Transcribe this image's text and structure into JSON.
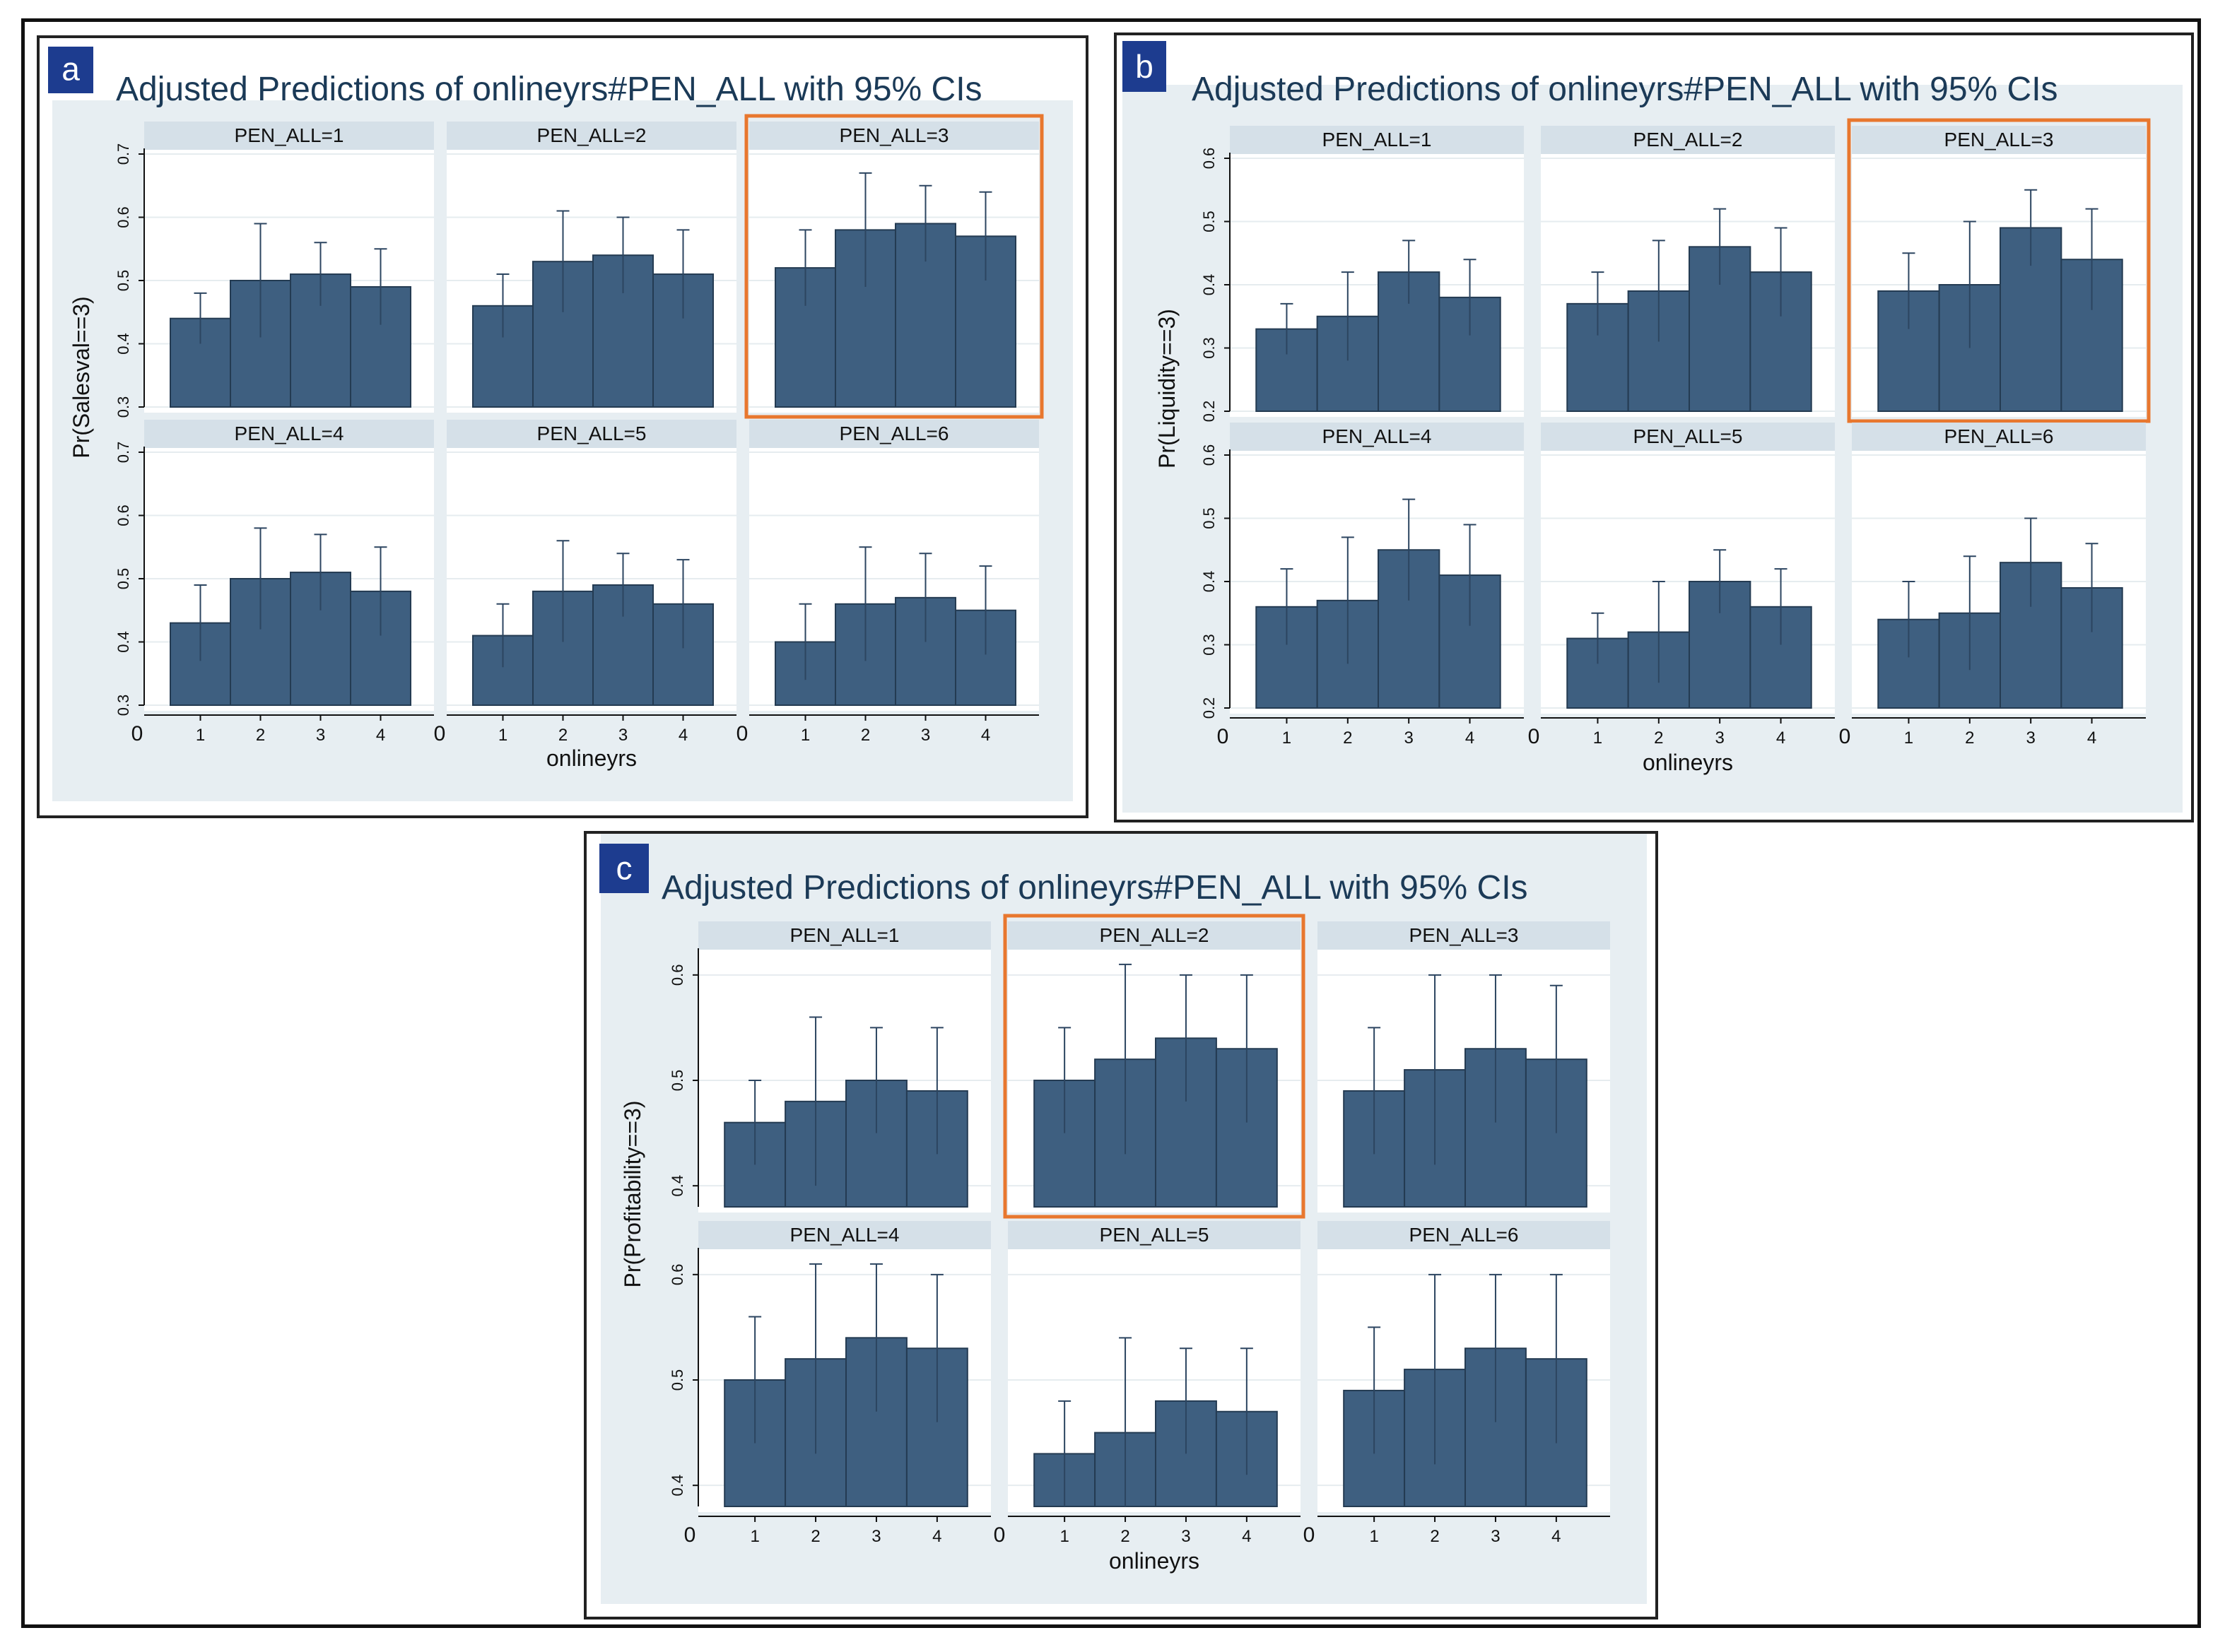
{
  "figures": [
    {
      "letter": "a",
      "title": "Adjusted Predictions of onlineyrs#PEN_ALL with 95% CIs",
      "ylabel": "Pr(Salesval==3)",
      "xlabel": "onlineyrs"
    },
    {
      "letter": "b",
      "title": "Adjusted Predictions of onlineyrs#PEN_ALL with 95% CIs",
      "ylabel": "Pr(Liquidity==3)",
      "xlabel": "onlineyrs"
    },
    {
      "letter": "c",
      "title": "Adjusted Predictions of onlineyrs#PEN_ALL with 95% CIs",
      "ylabel": "Pr(Profitability==3)",
      "xlabel": "onlineyrs"
    }
  ],
  "colors": {
    "bar": "#3e5f80",
    "panel_bg": "#e7eef2",
    "strip_bg": "#d5e0e8",
    "highlight": "#e8772e",
    "letter_box": "#1d3c8f"
  },
  "chart_data": [
    {
      "type": "bar",
      "title": "Adjusted Predictions of onlineyrs#PEN_ALL with 95% CIs",
      "ylabel": "Pr(Salesval==3)",
      "xlabel": "onlineyrs",
      "ylim": [
        0.3,
        0.7
      ],
      "yticks": [
        "0.3",
        "0.4",
        "0.5",
        "0.6",
        "0.7"
      ],
      "xticks": [
        "0",
        "1",
        "2",
        "3",
        "4"
      ],
      "highlighted_panel": 3,
      "panels": [
        {
          "label": "PEN_ALL=1",
          "x": [
            1,
            2,
            3,
            4
          ],
          "values": [
            0.44,
            0.5,
            0.51,
            0.49
          ],
          "ci_upper": [
            0.48,
            0.59,
            0.56,
            0.55
          ]
        },
        {
          "label": "PEN_ALL=2",
          "x": [
            1,
            2,
            3,
            4
          ],
          "values": [
            0.46,
            0.53,
            0.54,
            0.51
          ],
          "ci_upper": [
            0.51,
            0.61,
            0.6,
            0.58
          ]
        },
        {
          "label": "PEN_ALL=3",
          "x": [
            1,
            2,
            3,
            4
          ],
          "values": [
            0.52,
            0.58,
            0.59,
            0.57
          ],
          "ci_upper": [
            0.58,
            0.67,
            0.65,
            0.64
          ]
        },
        {
          "label": "PEN_ALL=4",
          "x": [
            1,
            2,
            3,
            4
          ],
          "values": [
            0.43,
            0.5,
            0.51,
            0.48
          ],
          "ci_upper": [
            0.49,
            0.58,
            0.57,
            0.55
          ]
        },
        {
          "label": "PEN_ALL=5",
          "x": [
            1,
            2,
            3,
            4
          ],
          "values": [
            0.41,
            0.48,
            0.49,
            0.46
          ],
          "ci_upper": [
            0.46,
            0.56,
            0.54,
            0.53
          ]
        },
        {
          "label": "PEN_ALL=6",
          "x": [
            1,
            2,
            3,
            4
          ],
          "values": [
            0.4,
            0.46,
            0.47,
            0.45
          ],
          "ci_upper": [
            0.46,
            0.55,
            0.54,
            0.52
          ]
        }
      ]
    },
    {
      "type": "bar",
      "title": "Adjusted Predictions of onlineyrs#PEN_ALL with 95% CIs",
      "ylabel": "Pr(Liquidity==3)",
      "xlabel": "onlineyrs",
      "ylim": [
        0.2,
        0.6
      ],
      "yticks": [
        "0.2",
        "0.3",
        "0.4",
        "0.5",
        "0.6"
      ],
      "xticks": [
        "0",
        "1",
        "2",
        "3",
        "4"
      ],
      "highlighted_panel": 3,
      "panels": [
        {
          "label": "PEN_ALL=1",
          "x": [
            1,
            2,
            3,
            4
          ],
          "values": [
            0.33,
            0.35,
            0.42,
            0.38
          ],
          "ci_upper": [
            0.37,
            0.42,
            0.47,
            0.44
          ]
        },
        {
          "label": "PEN_ALL=2",
          "x": [
            1,
            2,
            3,
            4
          ],
          "values": [
            0.37,
            0.39,
            0.46,
            0.42
          ],
          "ci_upper": [
            0.42,
            0.47,
            0.52,
            0.49
          ]
        },
        {
          "label": "PEN_ALL=3",
          "x": [
            1,
            2,
            3,
            4
          ],
          "values": [
            0.39,
            0.4,
            0.49,
            0.44
          ],
          "ci_upper": [
            0.45,
            0.5,
            0.55,
            0.52
          ]
        },
        {
          "label": "PEN_ALL=4",
          "x": [
            1,
            2,
            3,
            4
          ],
          "values": [
            0.36,
            0.37,
            0.45,
            0.41
          ],
          "ci_upper": [
            0.42,
            0.47,
            0.53,
            0.49
          ]
        },
        {
          "label": "PEN_ALL=5",
          "x": [
            1,
            2,
            3,
            4
          ],
          "values": [
            0.31,
            0.32,
            0.4,
            0.36
          ],
          "ci_upper": [
            0.35,
            0.4,
            0.45,
            0.42
          ]
        },
        {
          "label": "PEN_ALL=6",
          "x": [
            1,
            2,
            3,
            4
          ],
          "values": [
            0.34,
            0.35,
            0.43,
            0.39
          ],
          "ci_upper": [
            0.4,
            0.44,
            0.5,
            0.46
          ]
        }
      ]
    },
    {
      "type": "bar",
      "title": "Adjusted Predictions of onlineyrs#PEN_ALL with 95% CIs",
      "ylabel": "Pr(Profitability==3)",
      "xlabel": "onlineyrs",
      "ylim": [
        0.38,
        0.62
      ],
      "yticks": [
        "0.4",
        "0.5",
        "0.6"
      ],
      "xticks": [
        "0",
        "1",
        "2",
        "3",
        "4"
      ],
      "highlighted_panel": 2,
      "panels": [
        {
          "label": "PEN_ALL=1",
          "x": [
            1,
            2,
            3,
            4
          ],
          "values": [
            0.46,
            0.48,
            0.5,
            0.49
          ],
          "ci_upper": [
            0.5,
            0.56,
            0.55,
            0.55
          ]
        },
        {
          "label": "PEN_ALL=2",
          "x": [
            1,
            2,
            3,
            4
          ],
          "values": [
            0.5,
            0.52,
            0.54,
            0.53
          ],
          "ci_upper": [
            0.55,
            0.61,
            0.6,
            0.6
          ]
        },
        {
          "label": "PEN_ALL=3",
          "x": [
            1,
            2,
            3,
            4
          ],
          "values": [
            0.49,
            0.51,
            0.53,
            0.52
          ],
          "ci_upper": [
            0.55,
            0.6,
            0.6,
            0.59
          ]
        },
        {
          "label": "PEN_ALL=4",
          "x": [
            1,
            2,
            3,
            4
          ],
          "values": [
            0.5,
            0.52,
            0.54,
            0.53
          ],
          "ci_upper": [
            0.56,
            0.61,
            0.61,
            0.6
          ]
        },
        {
          "label": "PEN_ALL=5",
          "x": [
            1,
            2,
            3,
            4
          ],
          "values": [
            0.43,
            0.45,
            0.48,
            0.47
          ],
          "ci_upper": [
            0.48,
            0.54,
            0.53,
            0.53
          ]
        },
        {
          "label": "PEN_ALL=6",
          "x": [
            1,
            2,
            3,
            4
          ],
          "values": [
            0.49,
            0.51,
            0.53,
            0.52
          ],
          "ci_upper": [
            0.55,
            0.6,
            0.6,
            0.6
          ]
        }
      ]
    }
  ]
}
